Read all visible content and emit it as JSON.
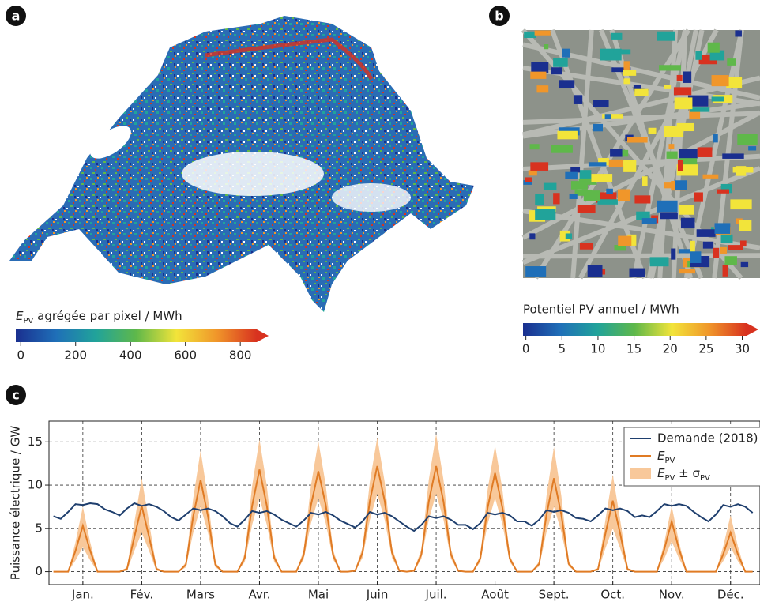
{
  "chart_data": [
    {
      "type": "map",
      "panel": "a",
      "colorbar": {
        "label": [
          "E",
          "PV",
          " agrégée par pixel / MWh"
        ],
        "lim": [
          -18,
          860
        ],
        "ticks": [
          0,
          200,
          400,
          600,
          800
        ],
        "colors": [
          "#1a2f8f",
          "#1f6fb8",
          "#21a39a",
          "#5fb84a",
          "#f2e43a",
          "#f0962a",
          "#d8321f"
        ]
      }
    },
    {
      "type": "image",
      "panel": "b",
      "colorbar": {
        "label": "Potentiel PV annuel / MWh",
        "lim": [
          -0.4,
          30.6
        ],
        "ticks": [
          0,
          5,
          10,
          15,
          20,
          25,
          30
        ],
        "colors": [
          "#1a2f8f",
          "#1f6fb8",
          "#21a39a",
          "#5fb84a",
          "#f2e43a",
          "#f0962a",
          "#d8321f"
        ]
      }
    },
    {
      "type": "line",
      "panel": "c",
      "y_label": "Puissance électrique / GW",
      "xlim": [
        -0.6,
        96
      ],
      "ylim": [
        -1.5,
        17.4
      ],
      "yticks": [
        0,
        5,
        10,
        15
      ],
      "grid": true,
      "legend": "upper right",
      "xticks": [
        {
          "value": 4,
          "label": "Jan."
        },
        {
          "value": 12,
          "label": "Fév."
        },
        {
          "value": 20,
          "label": "Mars"
        },
        {
          "value": 28,
          "label": "Avr."
        },
        {
          "value": 36,
          "label": "Mai"
        },
        {
          "value": 44,
          "label": "Juin"
        },
        {
          "value": 52,
          "label": "Juil."
        },
        {
          "value": 60,
          "label": "Août"
        },
        {
          "value": 68,
          "label": "Sept."
        },
        {
          "value": 76,
          "label": "Oct."
        },
        {
          "value": 84,
          "label": "Nov."
        },
        {
          "value": 92,
          "label": "Déc."
        }
      ],
      "x": [
        0,
        1,
        2,
        3,
        4,
        5,
        6,
        7,
        8,
        9,
        10,
        11,
        12,
        13,
        14,
        15,
        16,
        17,
        18,
        19,
        20,
        21,
        22,
        23,
        24,
        25,
        26,
        27,
        28,
        29,
        30,
        31,
        32,
        33,
        34,
        35,
        36,
        37,
        38,
        39,
        40,
        41,
        42,
        43,
        44,
        45,
        46,
        47,
        48,
        49,
        50,
        51,
        52,
        53,
        54,
        55,
        56,
        57,
        58,
        59,
        60,
        61,
        62,
        63,
        64,
        65,
        66,
        67,
        68,
        69,
        70,
        71,
        72,
        73,
        74,
        75,
        76,
        77,
        78,
        79,
        80,
        81,
        82,
        83,
        84,
        85,
        86,
        87,
        88,
        89,
        90,
        91,
        92,
        93,
        94,
        95
      ],
      "series": [
        {
          "name": "Demande (2018)",
          "color": "#1f3f6e",
          "values": [
            6.4,
            6.1,
            6.9,
            7.8,
            7.7,
            7.9,
            7.8,
            7.2,
            6.9,
            6.5,
            7.3,
            7.9,
            7.6,
            7.8,
            7.5,
            7.0,
            6.3,
            5.9,
            6.6,
            7.3,
            7.1,
            7.3,
            7.0,
            6.4,
            5.6,
            5.2,
            6.0,
            7.0,
            6.8,
            7.0,
            6.6,
            6.0,
            5.6,
            5.2,
            5.9,
            6.8,
            6.6,
            6.9,
            6.5,
            5.9,
            5.5,
            5.1,
            5.8,
            6.9,
            6.6,
            6.8,
            6.4,
            5.8,
            5.2,
            4.7,
            5.4,
            6.4,
            6.2,
            6.4,
            6.0,
            5.4,
            5.4,
            4.9,
            5.6,
            6.8,
            6.6,
            6.8,
            6.5,
            5.8,
            5.8,
            5.3,
            6.0,
            7.1,
            6.9,
            7.1,
            6.8,
            6.2,
            6.1,
            5.8,
            6.5,
            7.3,
            7.1,
            7.3,
            7.0,
            6.3,
            6.5,
            6.3,
            7.0,
            7.8,
            7.6,
            7.8,
            7.6,
            6.9,
            6.3,
            5.8,
            6.6,
            7.7,
            7.5,
            7.8,
            7.5,
            6.8
          ]
        },
        {
          "name": [
            "E",
            "PV"
          ],
          "color": "#e07b24",
          "values": [
            0,
            0,
            0,
            2.4,
            5.3,
            2.4,
            0,
            0,
            0,
            0,
            0.3,
            4.0,
            7.6,
            4.0,
            0.3,
            0,
            0,
            0,
            0.8,
            6.4,
            10.6,
            6.4,
            0.8,
            0,
            0,
            0,
            1.6,
            7.6,
            11.8,
            7.6,
            1.6,
            0,
            0,
            0,
            1.9,
            7.7,
            11.6,
            7.7,
            1.9,
            0,
            0,
            0.1,
            2.2,
            8.2,
            12.2,
            8.2,
            2.2,
            0.1,
            0,
            0.1,
            2.0,
            8.1,
            12.2,
            8.1,
            2.0,
            0.1,
            0,
            0,
            1.5,
            7.4,
            11.4,
            7.4,
            1.5,
            0,
            0,
            0,
            0.9,
            6.6,
            10.8,
            6.6,
            0.9,
            0,
            0,
            0,
            0.3,
            4.4,
            8.2,
            4.4,
            0.3,
            0,
            0,
            0,
            0,
            2.6,
            5.8,
            2.6,
            0,
            0,
            0,
            0,
            0,
            2.0,
            4.5,
            2.0,
            0,
            0
          ]
        },
        {
          "name": [
            "E",
            "PV",
            " ± σ",
            "PV"
          ],
          "color": "#f8c89a",
          "upper": [
            0,
            0,
            0,
            3.4,
            7.5,
            3.4,
            0,
            0,
            0,
            0,
            0.5,
            5.7,
            10.8,
            5.7,
            0.5,
            0,
            0,
            0,
            1.1,
            8.5,
            14.0,
            8.5,
            1.1,
            0,
            0,
            0,
            2.1,
            9.9,
            15.3,
            9.9,
            2.1,
            0,
            0,
            0,
            2.5,
            10.0,
            15.1,
            10.0,
            2.5,
            0,
            0,
            0.2,
            2.8,
            10.4,
            15.5,
            10.4,
            2.8,
            0.2,
            0,
            0.2,
            2.6,
            10.6,
            15.9,
            10.6,
            2.6,
            0.2,
            0,
            0,
            1.9,
            9.5,
            14.6,
            9.5,
            1.9,
            0,
            0,
            0,
            1.2,
            8.8,
            14.4,
            8.8,
            1.2,
            0,
            0,
            0,
            0.4,
            6.0,
            11.2,
            6.0,
            0.4,
            0,
            0,
            0,
            0,
            3.4,
            7.6,
            3.4,
            0,
            0,
            0,
            0,
            0,
            2.9,
            6.5,
            2.9,
            0,
            0
          ],
          "lower": [
            0,
            0,
            0,
            1.3,
            2.8,
            1.3,
            0,
            0,
            0,
            0,
            0.1,
            2.4,
            4.5,
            2.4,
            0.1,
            0,
            0,
            0,
            0.5,
            4.5,
            7.5,
            4.5,
            0.5,
            0,
            0,
            0,
            1.1,
            5.4,
            8.5,
            5.4,
            1.1,
            0,
            0,
            0,
            1.4,
            5.6,
            8.5,
            5.6,
            1.4,
            0,
            0,
            0,
            1.6,
            6.0,
            9.0,
            6.0,
            1.6,
            0,
            0,
            0,
            1.5,
            6.0,
            9.0,
            6.0,
            1.5,
            0,
            0,
            0,
            1.1,
            5.5,
            8.5,
            5.5,
            1.1,
            0,
            0,
            0,
            0.6,
            4.6,
            7.5,
            4.6,
            0.6,
            0,
            0,
            0,
            0.1,
            2.7,
            5.0,
            2.7,
            0.1,
            0,
            0,
            0,
            0,
            1.5,
            3.5,
            1.5,
            0,
            0,
            0,
            0,
            0,
            1.2,
            2.8,
            1.2,
            0,
            0
          ]
        }
      ]
    }
  ]
}
